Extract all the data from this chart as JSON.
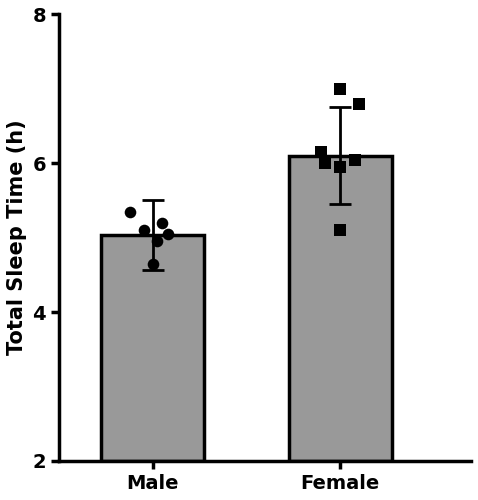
{
  "categories": [
    "Male",
    "Female"
  ],
  "bar_means": [
    5.03,
    6.1
  ],
  "bar_sd": [
    0.47,
    0.65
  ],
  "bar_color": "#999999",
  "bar_edgecolor": "#000000",
  "bar_linewidth": 2.5,
  "ylim": [
    2,
    8
  ],
  "yticks": [
    2,
    4,
    6,
    8
  ],
  "ylabel": "Total Sleep Time (h)",
  "ylabel_fontsize": 15,
  "ylabel_fontweight": "bold",
  "tick_label_fontsize": 14,
  "tick_label_fontweight": "bold",
  "axis_linewidth": 2.5,
  "male_points": [
    5.35,
    5.2,
    5.1,
    5.05,
    4.95,
    4.65
  ],
  "male_jitter": [
    -0.12,
    0.05,
    -0.05,
    0.08,
    0.02,
    0.0
  ],
  "female_points": [
    7.0,
    6.8,
    6.15,
    6.05,
    6.0,
    5.95,
    5.1
  ],
  "female_jitter": [
    0.0,
    0.1,
    -0.1,
    0.08,
    -0.08,
    0.0,
    0.0
  ],
  "point_size": 70,
  "errorbar_capsize": 8,
  "errorbar_linewidth": 2.0,
  "errorbar_color": "#000000",
  "background_color": "#ffffff",
  "bar_width": 0.55,
  "x_positions": [
    1,
    2
  ],
  "xlim": [
    0.5,
    2.7
  ]
}
